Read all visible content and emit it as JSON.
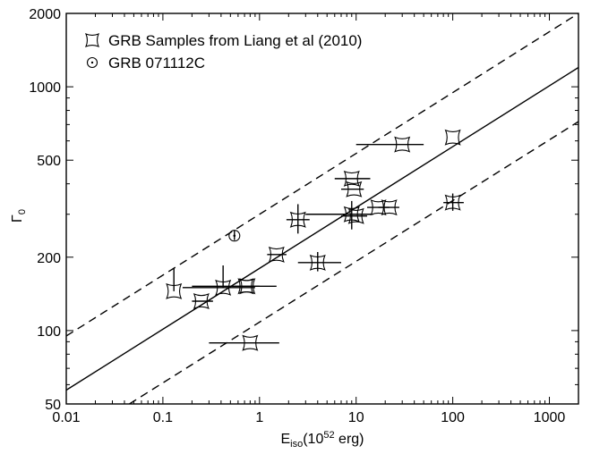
{
  "chart_data": {
    "type": "scatter",
    "xscale": "log",
    "yscale": "log",
    "xlim": [
      0.01,
      2000
    ],
    "ylim": [
      50,
      2000
    ],
    "grid": false,
    "legend_placement": "top-left",
    "xlabel": {
      "main": "E",
      "sub": "iso",
      "rest": "(10",
      "sup": "52",
      "tail": " erg)"
    },
    "ylabel": {
      "main": "Γ",
      "sub": "0"
    },
    "x_ticks": [
      0.01,
      0.1,
      1,
      10,
      100,
      1000
    ],
    "x_tick_labels": [
      "0.01",
      "0.1",
      "1",
      "10",
      "100",
      "1000"
    ],
    "y_ticks": [
      50,
      100,
      200,
      500,
      1000,
      2000
    ],
    "y_tick_labels": [
      "50",
      "100",
      "200",
      "500",
      "1000",
      "2000"
    ],
    "series": [
      {
        "name": "GRB Samples from Liang et al (2010)",
        "marker": "concave-square",
        "points": [
          {
            "x": 0.13,
            "y": 145,
            "xerr": [
              0.13,
              0.13
            ],
            "yerr": [
              145,
              180
            ]
          },
          {
            "x": 0.25,
            "y": 132,
            "xerr": [
              0.2,
              0.33
            ]
          },
          {
            "x": 0.42,
            "y": 150,
            "xerr": [
              0.16,
              0.9
            ],
            "yerr": [
              150,
              185
            ]
          },
          {
            "x": 0.72,
            "y": 152,
            "xerr": [
              0.55,
              1.0
            ]
          },
          {
            "x": 0.75,
            "y": 152,
            "xerr": [
              0.2,
              1.5
            ]
          },
          {
            "x": 0.8,
            "y": 89,
            "xerr": [
              0.3,
              1.6
            ]
          },
          {
            "x": 1.5,
            "y": 205,
            "xerr": [
              1.2,
              1.9
            ]
          },
          {
            "x": 2.5,
            "y": 285,
            "xerr": [
              1.9,
              3.3
            ],
            "yerr": [
              250,
              330
            ]
          },
          {
            "x": 4.0,
            "y": 190,
            "xerr": [
              2.5,
              7.0
            ],
            "yerr": [
              175,
              210
            ]
          },
          {
            "x": 9.0,
            "y": 300,
            "xerr": [
              3.0,
              15.0
            ],
            "yerr": [
              260,
              340
            ]
          },
          {
            "x": 9.0,
            "y": 420,
            "xerr": [
              6.0,
              14.0
            ]
          },
          {
            "x": 9.5,
            "y": 380,
            "xerr": [
              7.0,
              12.0
            ]
          },
          {
            "x": 10.0,
            "y": 295,
            "xerr": [
              7.0,
              13.0
            ]
          },
          {
            "x": 17.0,
            "y": 320,
            "xerr": [
              13.0,
              22.0
            ]
          },
          {
            "x": 22.0,
            "y": 320,
            "xerr": [
              17.0,
              28.0
            ]
          },
          {
            "x": 30.0,
            "y": 580,
            "xerr": [
              10.0,
              50.0
            ]
          },
          {
            "x": 100.0,
            "y": 620
          },
          {
            "x": 100.0,
            "y": 335,
            "xerr": [
              80.0,
              130.0
            ],
            "yerr": [
              310,
              365
            ]
          }
        ]
      },
      {
        "name": "GRB 071112C",
        "marker": "circle-dot",
        "points": [
          {
            "x": 0.55,
            "y": 245,
            "yerr": [
              235,
              258
            ]
          }
        ]
      }
    ],
    "lines": [
      {
        "style": "solid",
        "from": [
          0.01,
          57
        ],
        "to": [
          2000,
          1200
        ]
      },
      {
        "style": "dashed",
        "from": [
          0.01,
          95
        ],
        "to": [
          2000,
          2000
        ]
      },
      {
        "style": "dashed",
        "from": [
          0.045,
          50
        ],
        "to": [
          2000,
          720
        ]
      }
    ]
  }
}
